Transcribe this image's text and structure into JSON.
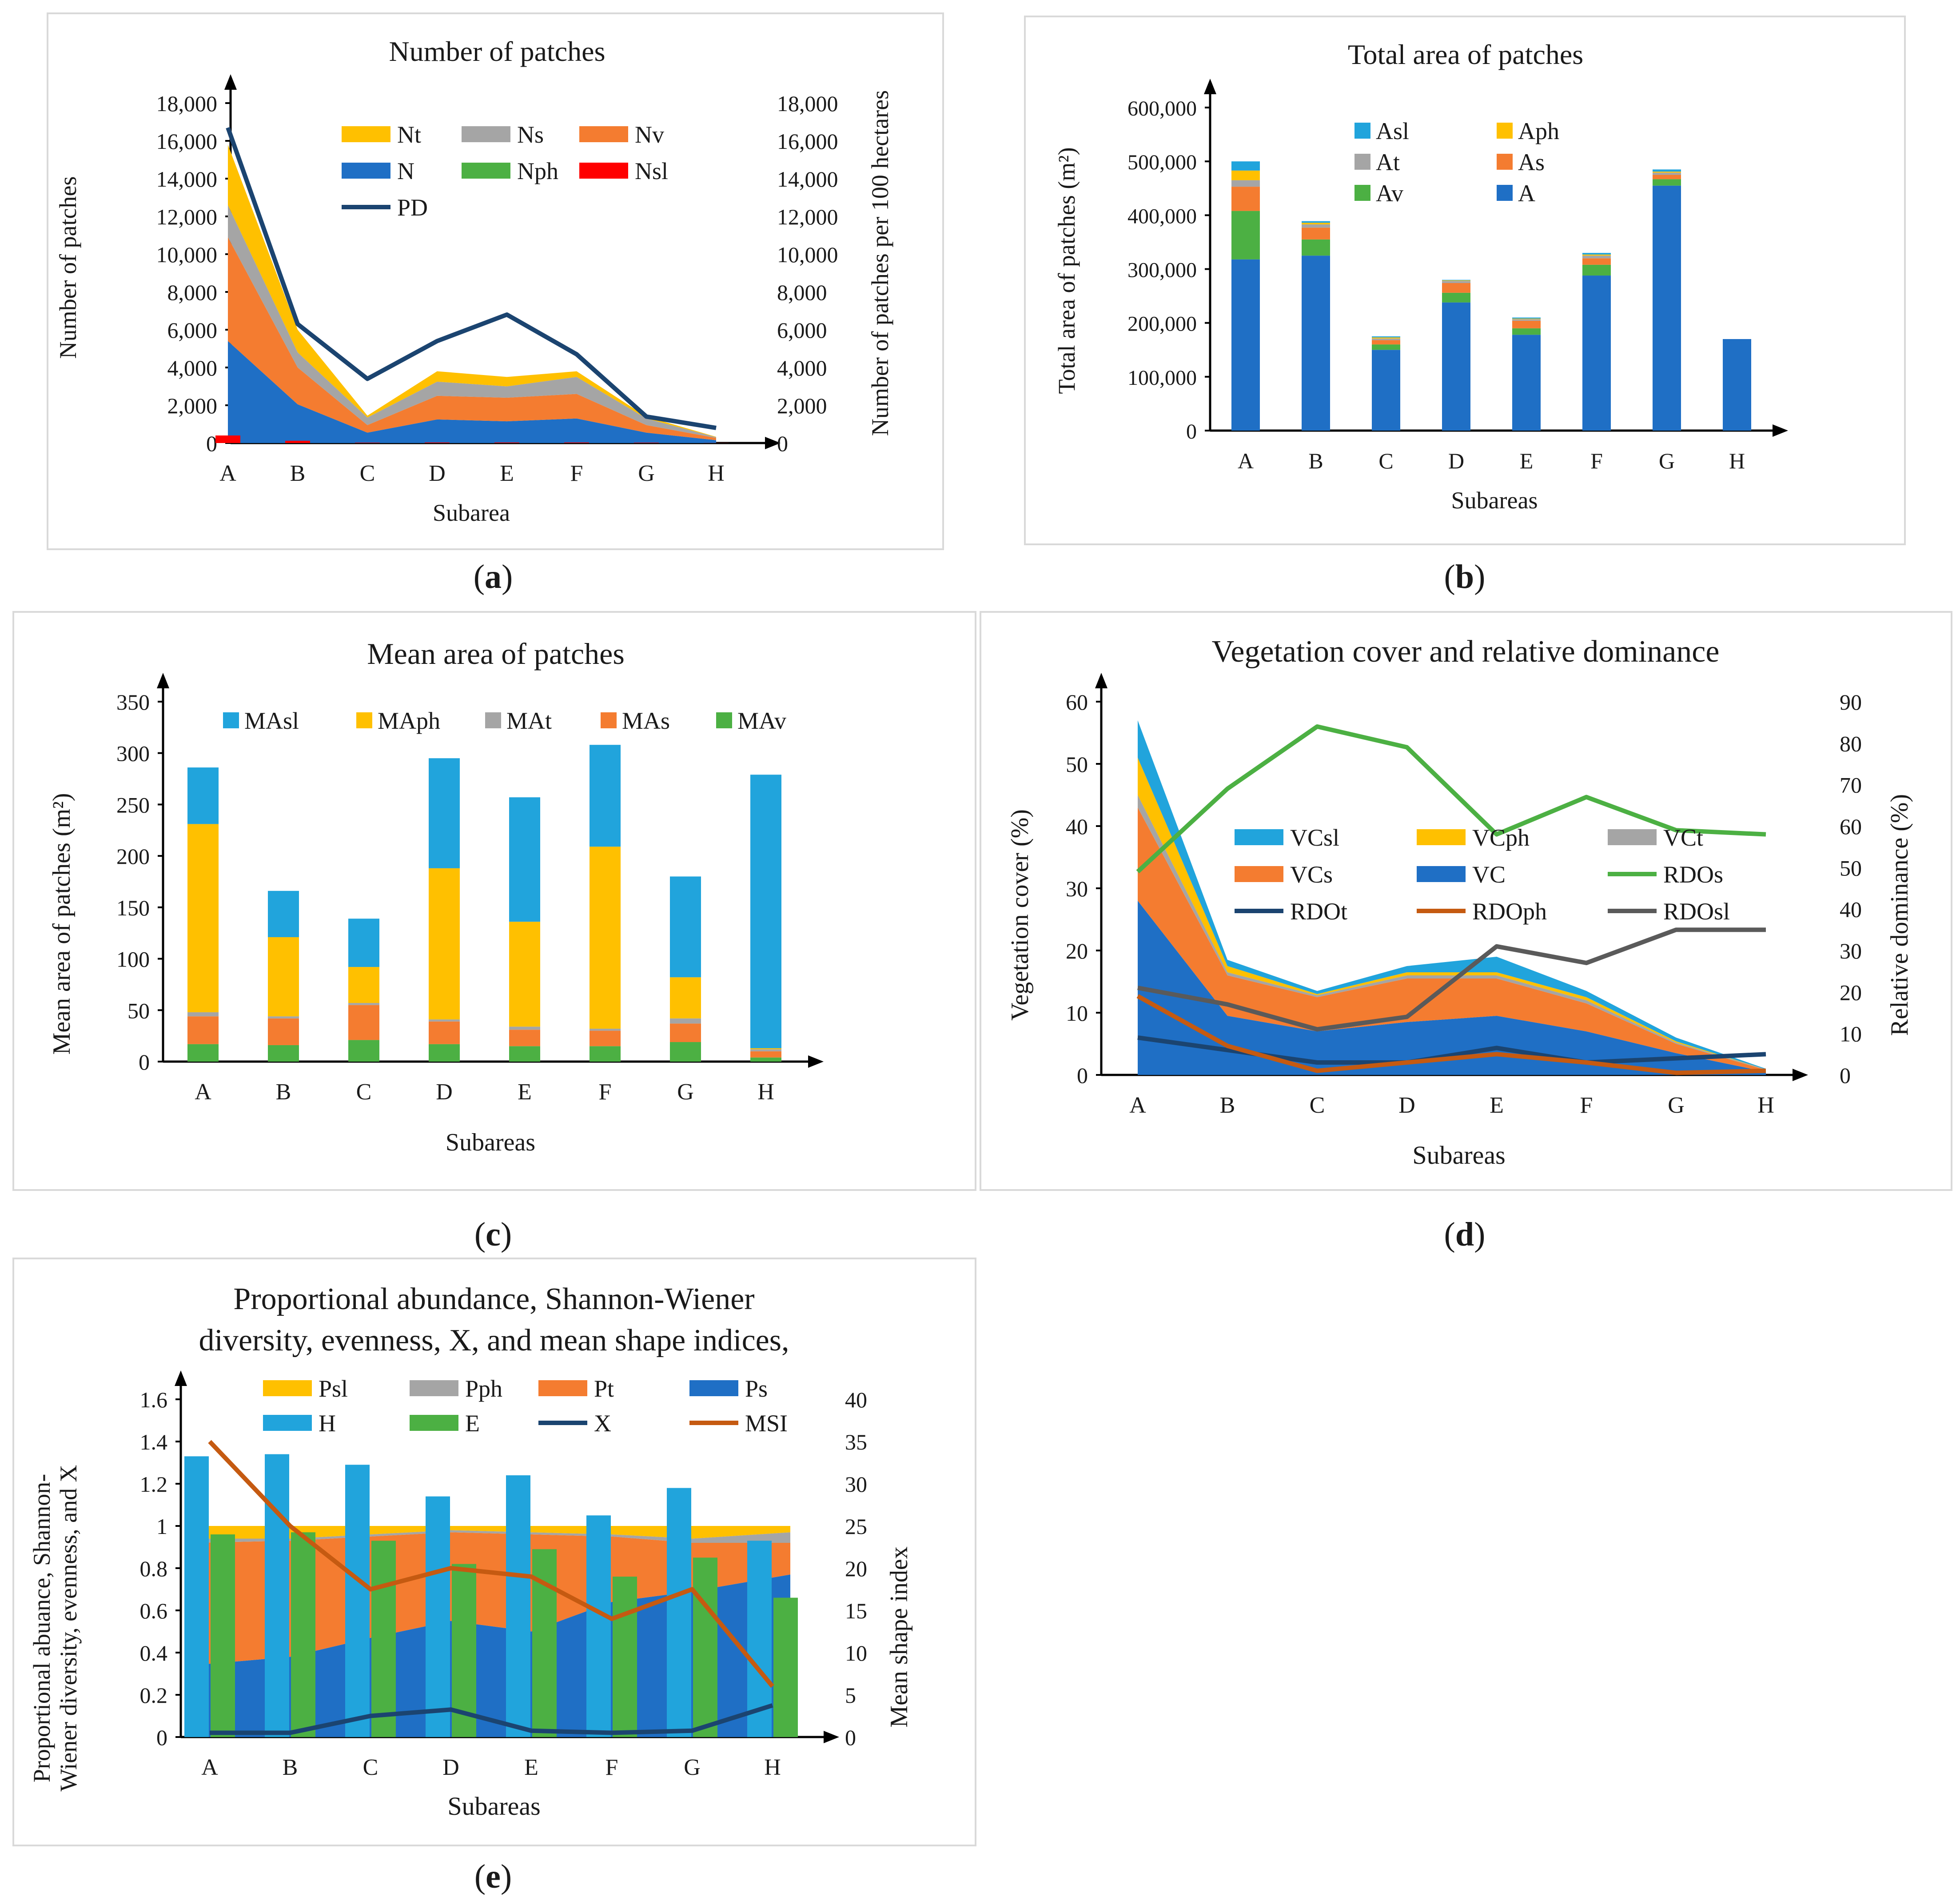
{
  "captions": {
    "a": "a",
    "b": "b",
    "c": "c",
    "d": "d",
    "e": "e"
  },
  "colors": {
    "yellow": "#FFC000",
    "gray": "#A5A5A5",
    "orange": "#F47C30",
    "blue": "#1F6FC5",
    "green": "#4CB043",
    "red": "#FF0000",
    "navy": "#1B4470",
    "lightblue": "#21A4DC",
    "brown": "#C55A11",
    "darkgray": "#5A5A5A",
    "lightgreen": "#4CB043"
  },
  "chart_data": [
    {
      "id": "a",
      "type": "area",
      "title": "Number of patches",
      "xlabel": "Subarea",
      "ylabel": "Number of patches",
      "y2label": "Number of patches per 100 hectares",
      "categories": [
        "A",
        "B",
        "C",
        "D",
        "E",
        "F",
        "G",
        "H"
      ],
      "ylim": [
        0,
        18000
      ],
      "y2lim": [
        0,
        18000
      ],
      "yticks": [
        "0",
        "2,000",
        "4,000",
        "6,000",
        "8,000",
        "10,000",
        "12,000",
        "14,000",
        "16,000",
        "18,000"
      ],
      "y2ticks": [
        "0",
        "2,000",
        "4,000",
        "6,000",
        "8,000",
        "10,000",
        "12,000",
        "14,000",
        "16,000",
        "18,000"
      ],
      "series": [
        {
          "name": "N",
          "color": "#1F6FC5",
          "values": [
            5400,
            2050,
            550,
            1250,
            1150,
            1300,
            550,
            150
          ]
        },
        {
          "name": "Nv",
          "color": "#F47C30",
          "values": [
            5500,
            1950,
            400,
            1250,
            1250,
            1300,
            400,
            120
          ]
        },
        {
          "name": "Ns",
          "color": "#A5A5A5",
          "values": [
            1700,
            800,
            400,
            750,
            600,
            900,
            350,
            40
          ]
        },
        {
          "name": "Nt",
          "color": "#FFC000",
          "values": [
            3200,
            1200,
            100,
            550,
            500,
            300,
            100,
            20
          ]
        },
        {
          "name": "Nph",
          "color": "#4CB043",
          "values": [
            40,
            20,
            10,
            20,
            20,
            20,
            10,
            5
          ]
        },
        {
          "name": "Nsl",
          "color": "#FF0000",
          "values": [
            400,
            120,
            20,
            30,
            30,
            30,
            20,
            5
          ]
        }
      ],
      "line": {
        "name": "PD",
        "color": "#1B4470",
        "values": [
          16700,
          6300,
          3400,
          5400,
          6800,
          4700,
          1400,
          800
        ]
      },
      "legend_order": [
        "Nt",
        "Ns",
        "Nv",
        "N",
        "Nph",
        "Nsl",
        "PD"
      ]
    },
    {
      "id": "b",
      "type": "bar",
      "title": "Total area of patches",
      "xlabel": "Subareas",
      "ylabel": "Total area of patches (m²)",
      "categories": [
        "A",
        "B",
        "C",
        "D",
        "E",
        "F",
        "G",
        "H"
      ],
      "ylim": [
        0,
        600000
      ],
      "yticks": [
        "0",
        "100,000",
        "200,000",
        "300,000",
        "400,000",
        "500,000",
        "600,000"
      ],
      "series": [
        {
          "name": "A",
          "color": "#1F6FC5",
          "values": [
            318000,
            325000,
            150000,
            238000,
            178000,
            288000,
            455000,
            170000
          ]
        },
        {
          "name": "Av",
          "color": "#4CB043",
          "values": [
            90000,
            30000,
            10000,
            18000,
            12000,
            20000,
            12000,
            0
          ]
        },
        {
          "name": "As",
          "color": "#F47C30",
          "values": [
            45000,
            22000,
            8000,
            18000,
            14000,
            12000,
            8000,
            0
          ]
        },
        {
          "name": "At",
          "color": "#A5A5A5",
          "values": [
            12000,
            6000,
            3000,
            4000,
            3000,
            5000,
            4000,
            0
          ]
        },
        {
          "name": "Aph",
          "color": "#FFC000",
          "values": [
            18000,
            3000,
            2000,
            1000,
            1000,
            2000,
            2000,
            0
          ]
        },
        {
          "name": "Asl",
          "color": "#21A4DC",
          "values": [
            17000,
            3000,
            2000,
            1000,
            2000,
            3000,
            4000,
            0
          ]
        }
      ],
      "legend_order": [
        "Asl",
        "Aph",
        "At",
        "As",
        "Av",
        "A"
      ]
    },
    {
      "id": "c",
      "type": "bar",
      "title": "Mean area of patches",
      "xlabel": "Subareas",
      "ylabel": "Mean area of patches (m²)",
      "categories": [
        "A",
        "B",
        "C",
        "D",
        "E",
        "F",
        "G",
        "H"
      ],
      "ylim": [
        0,
        350
      ],
      "yticks": [
        "0",
        "50",
        "100",
        "150",
        "200",
        "250",
        "300",
        "350"
      ],
      "series": [
        {
          "name": "MAv",
          "color": "#4CB043",
          "values": [
            17,
            16,
            21,
            17,
            15,
            15,
            19,
            4
          ]
        },
        {
          "name": "MAs",
          "color": "#F47C30",
          "values": [
            27,
            26,
            34,
            22,
            16,
            15,
            18,
            6
          ]
        },
        {
          "name": "MAt",
          "color": "#A5A5A5",
          "values": [
            4,
            2,
            2,
            2,
            3,
            2,
            5,
            2
          ]
        },
        {
          "name": "MAph",
          "color": "#FFC000",
          "values": [
            183,
            77,
            35,
            147,
            102,
            177,
            40,
            1
          ]
        },
        {
          "name": "MAsl",
          "color": "#21A4DC",
          "values": [
            55,
            45,
            47,
            107,
            121,
            99,
            98,
            266
          ]
        }
      ],
      "legend_order": [
        "MAsl",
        "MAph",
        "MAt",
        "MAs",
        "MAv"
      ]
    },
    {
      "id": "d",
      "type": "area",
      "title": "Vegetation cover and relative dominance",
      "xlabel": "Subareas",
      "ylabel": "Vegetation cover (%)",
      "y2label": "Relative dominance (%)",
      "categories": [
        "A",
        "B",
        "C",
        "D",
        "E",
        "F",
        "G",
        "H"
      ],
      "ylim": [
        0,
        60
      ],
      "y2lim": [
        0,
        90
      ],
      "yticks": [
        "0",
        "10",
        "20",
        "30",
        "40",
        "50",
        "60"
      ],
      "y2ticks": [
        "0",
        "10",
        "20",
        "30",
        "40",
        "50",
        "60",
        "70",
        "80",
        "90"
      ],
      "series": [
        {
          "name": "VC",
          "color": "#1F6FC5",
          "values": [
            28,
            9.5,
            7,
            8.5,
            9.5,
            7,
            3.5,
            0.5
          ]
        },
        {
          "name": "VCs",
          "color": "#F47C30",
          "values": [
            15,
            6.5,
            5.5,
            7,
            6,
            4.5,
            1.5,
            0.3
          ]
        },
        {
          "name": "VCt",
          "color": "#A5A5A5",
          "values": [
            2,
            0.5,
            0.3,
            0.5,
            0.5,
            0.5,
            0.2,
            0.1
          ]
        },
        {
          "name": "VCph",
          "color": "#FFC000",
          "values": [
            6,
            1,
            0.2,
            0.5,
            0.5,
            0.5,
            0.2,
            0
          ]
        },
        {
          "name": "VCsl",
          "color": "#21A4DC",
          "values": [
            6,
            1,
            0.5,
            1,
            2.5,
            1,
            0.6,
            0.1
          ]
        }
      ],
      "lines": [
        {
          "name": "RDOs",
          "color": "#4CB043",
          "values": [
            49,
            69,
            84,
            79,
            58,
            67,
            59,
            58
          ]
        },
        {
          "name": "RDOt",
          "color": "#1B4470",
          "values": [
            9,
            6,
            3,
            3,
            6.5,
            3,
            4,
            5
          ]
        },
        {
          "name": "RDOph",
          "color": "#C55A11",
          "values": [
            19,
            7,
            1,
            3,
            5,
            3,
            0.5,
            1
          ]
        },
        {
          "name": "RDOsl",
          "color": "#5A5A5A",
          "values": [
            21,
            17,
            11,
            14,
            31,
            27,
            35,
            35
          ]
        }
      ],
      "legend_order": [
        "VCsl",
        "VCph",
        "VCt",
        "VCs",
        "VC",
        "RDOs",
        "RDOt",
        "RDOph",
        "RDOsl"
      ]
    },
    {
      "id": "e",
      "type": "bar",
      "title_lines": [
        "Proportional abundance, Shannon-Wiener",
        "diversity, evenness, X, and mean shape indices,"
      ],
      "xlabel": "Subareas",
      "ylabel_lines": [
        "Proportional abuance, Shannon-",
        "Wiener diversity, evenness, and X"
      ],
      "y2label": "Mean shape index",
      "categories": [
        "A",
        "B",
        "C",
        "D",
        "E",
        "F",
        "G",
        "H"
      ],
      "ylim": [
        0,
        1.6
      ],
      "y2lim": [
        0,
        40
      ],
      "yticks": [
        "0",
        "0.2",
        "0.4",
        "0.6",
        "0.8",
        "1",
        "1.2",
        "1.4",
        "1.6"
      ],
      "y2ticks": [
        "0",
        "5",
        "10",
        "15",
        "20",
        "25",
        "30",
        "35",
        "40"
      ],
      "area_series": [
        {
          "name": "Ps",
          "color": "#1F6FC5",
          "values": [
            0.34,
            0.38,
            0.47,
            0.55,
            0.5,
            0.64,
            0.69,
            0.77
          ]
        },
        {
          "name": "Pt",
          "color": "#F47C30",
          "values": [
            0.58,
            0.55,
            0.48,
            0.42,
            0.46,
            0.31,
            0.23,
            0.15
          ]
        },
        {
          "name": "Pph",
          "color": "#A5A5A5",
          "values": [
            0.02,
            0.01,
            0.01,
            0.01,
            0.01,
            0.01,
            0.02,
            0.05
          ]
        },
        {
          "name": "Psl",
          "color": "#FFC000",
          "values": [
            0.06,
            0.06,
            0.04,
            0.02,
            0.03,
            0.04,
            0.06,
            0.03
          ]
        }
      ],
      "bar_series": [
        {
          "name": "H",
          "color": "#21A4DC",
          "values": [
            1.33,
            1.34,
            1.29,
            1.14,
            1.24,
            1.05,
            1.18,
            0.93
          ]
        },
        {
          "name": "E",
          "color": "#4CB043",
          "values": [
            0.96,
            0.97,
            0.93,
            0.82,
            0.89,
            0.76,
            0.85,
            0.66
          ]
        }
      ],
      "lines": [
        {
          "name": "X",
          "color": "#1B4470",
          "axis": "left",
          "values": [
            0.02,
            0.02,
            0.1,
            0.13,
            0.03,
            0.02,
            0.03,
            0.15
          ]
        },
        {
          "name": "MSI",
          "color": "#C55A11",
          "axis": "right",
          "values": [
            35,
            25,
            17.5,
            20,
            19,
            14,
            17.5,
            6
          ]
        }
      ],
      "legend_order": [
        "Psl",
        "Pph",
        "Pt",
        "Ps",
        "H",
        "E",
        "X",
        "MSI"
      ]
    }
  ]
}
